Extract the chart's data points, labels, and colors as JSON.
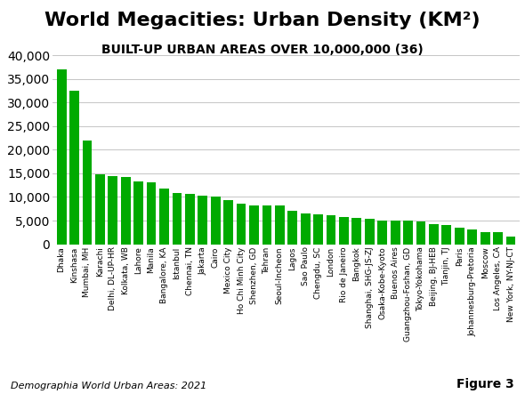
{
  "title": "World Megacities: Urban Density (KM²)",
  "subtitle": "BUILT-UP URBAN AREAS OVER 10,000,000 (36)",
  "footnote": "Demographia World Urban Areas: 2021",
  "figure_label": "Figure 3",
  "bar_color": "#00aa00",
  "categories": [
    "Dhaka",
    "Kinshasa",
    "Mumbai, MH",
    "Karachi",
    "Delhi, DL-UP-HR",
    "Kolkata, WB",
    "Lahore",
    "Manila",
    "Bangalore, KA",
    "Istanbul",
    "Chennai, TN",
    "Jakarta",
    "Cairo",
    "Mexico City",
    "Ho Chi Minh City",
    "Shenzhen, GD",
    "Tehran",
    "Seoul-Incheon",
    "Lagos",
    "Sao Paulo",
    "Chengdu, SC",
    "London",
    "Rio de Janeiro",
    "Bangkok",
    "Shanghai, SHG-JS-ZJ",
    "Osaka-Kobe-Kyoto",
    "Buenos Aires",
    "Guangzhou-Foshan, GD",
    "Tokyo-Yokohama",
    "Beijing, BJ-HEB",
    "Tianjin, TJ",
    "Paris",
    "Johannesburg-Pretoria",
    "Moscow",
    "Los Angeles, CA",
    "New York, NY-NJ-CT"
  ],
  "values": [
    37000,
    32400,
    22000,
    14800,
    14500,
    14200,
    13300,
    13100,
    11700,
    10800,
    10600,
    10300,
    10100,
    9400,
    8600,
    8300,
    8300,
    8200,
    7000,
    6600,
    6400,
    6200,
    5700,
    5500,
    5300,
    5100,
    5100,
    5100,
    4800,
    4200,
    4100,
    3600,
    3100,
    2600,
    2500,
    1700
  ],
  "ylim": [
    0,
    40000
  ],
  "yticks": [
    0,
    5000,
    10000,
    15000,
    20000,
    25000,
    30000,
    35000,
    40000
  ],
  "background_color": "#ffffff",
  "grid_color": "#bbbbbb",
  "title_fontsize": 16,
  "subtitle_fontsize": 10,
  "tick_label_fontsize": 6.5
}
